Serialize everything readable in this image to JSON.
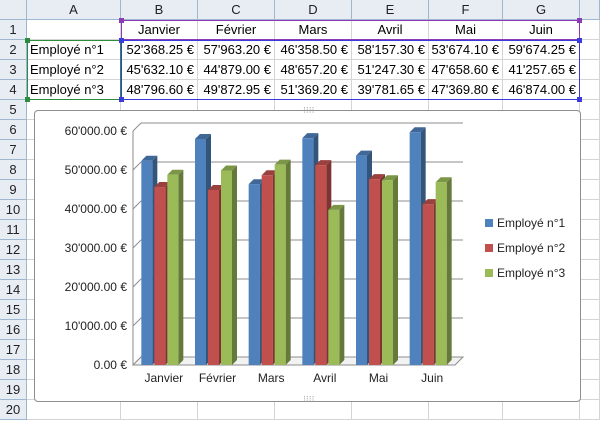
{
  "sheet": {
    "columns": [
      "A",
      "B",
      "C",
      "D",
      "E",
      "F",
      "G"
    ],
    "rows": [
      "1",
      "2",
      "3",
      "4",
      "5",
      "6",
      "7",
      "8",
      "9",
      "10",
      "11",
      "12",
      "13",
      "14",
      "15",
      "16",
      "17",
      "18",
      "19",
      "20"
    ],
    "header_row": [
      "",
      "Janvier",
      "Février",
      "Mars",
      "Avril",
      "Mai",
      "Juin"
    ],
    "data_rows": [
      [
        "Employé n°1",
        "52'368.25 €",
        "57'963.20 €",
        "46'358.50 €",
        "58'157.30 €",
        "53'674.10 €",
        "59'674.25 €"
      ],
      [
        "Employé n°2",
        "45'632.10 €",
        "44'879.00 €",
        "48'657.20 €",
        "51'247.30 €",
        "47'658.60 €",
        "41'257.65 €"
      ],
      [
        "Employé n°3",
        "48'796.60 €",
        "49'872.95 €",
        "51'369.20 €",
        "39'781.65 €",
        "47'369.80 €",
        "46'874.00 €"
      ]
    ]
  },
  "chart_data": {
    "type": "bar",
    "categories": [
      "Janvier",
      "Février",
      "Mars",
      "Avril",
      "Mai",
      "Juin"
    ],
    "series": [
      {
        "name": "Employé n°1",
        "color": "#4f81bd",
        "values": [
          52368.25,
          57963.2,
          46358.5,
          58157.3,
          53674.1,
          59674.25
        ]
      },
      {
        "name": "Employé n°2",
        "color": "#c0504d",
        "values": [
          45632.1,
          44879.0,
          48657.2,
          51247.3,
          47658.6,
          41257.65
        ]
      },
      {
        "name": "Employé n°3",
        "color": "#9bbb59",
        "values": [
          48796.6,
          49872.95,
          51369.2,
          39781.65,
          47369.8,
          46874.0
        ]
      }
    ],
    "y_ticks": [
      "0.00 €",
      "10'000.00 €",
      "20'000.00 €",
      "30'000.00 €",
      "40'000.00 €",
      "50'000.00 €",
      "60'000.00 €"
    ],
    "ylim": [
      0,
      60000
    ],
    "grid": true,
    "legend_position": "right",
    "style": "3d-clustered-column"
  },
  "colors": {
    "header_bg": "#e8ecf3",
    "gridline": "#d4d4d4",
    "selection_green": "#2b8c3d",
    "selection_blue": "#3b3bdb",
    "selection_purple": "#8b3bb5"
  }
}
